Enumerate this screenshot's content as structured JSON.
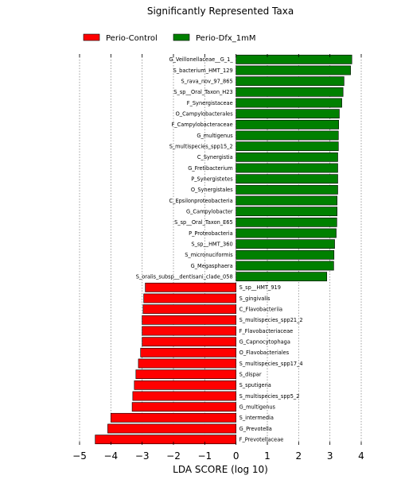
{
  "chart_data": {
    "type": "bar",
    "orientation": "horizontal",
    "title": "Significantly Represented Taxa",
    "xlabel": "LDA SCORE (log 10)",
    "xlim": [
      -5,
      4
    ],
    "xticks": [
      "−5",
      "−4",
      "−3",
      "−2",
      "−1",
      "0",
      "1",
      "2",
      "3",
      "4"
    ],
    "grid": "vertical dotted",
    "legend_position": "top",
    "series": [
      {
        "name": "Perio-Control",
        "color": "#ff0000"
      },
      {
        "name": "Perio-Dfx_1mM",
        "color": "#008000"
      }
    ],
    "bars": [
      {
        "label": "G_Veillonellaceae__G_1_",
        "value": 3.7,
        "series": 1
      },
      {
        "label": "S_bacterium_HMT_129",
        "value": 3.66,
        "series": 1
      },
      {
        "label": "S_rava_nov_97_865",
        "value": 3.45,
        "series": 1
      },
      {
        "label": "S_sp__Oral_Taxon_H23",
        "value": 3.42,
        "series": 1
      },
      {
        "label": "F_Synergistaceae",
        "value": 3.38,
        "series": 1
      },
      {
        "label": "O_Campylobacterales",
        "value": 3.3,
        "series": 1
      },
      {
        "label": "F_Campylobacteraceae",
        "value": 3.28,
        "series": 1
      },
      {
        "label": "G_multigenus",
        "value": 3.27,
        "series": 1
      },
      {
        "label": "S_multispecies_spp15_2",
        "value": 3.27,
        "series": 1
      },
      {
        "label": "C_Synergistia",
        "value": 3.25,
        "series": 1
      },
      {
        "label": "G_Fretibacterium",
        "value": 3.25,
        "series": 1
      },
      {
        "label": "P_Synergistetes",
        "value": 3.25,
        "series": 1
      },
      {
        "label": "O_Synergistales",
        "value": 3.25,
        "series": 1
      },
      {
        "label": "C_Epsilonproteobacteria",
        "value": 3.23,
        "series": 1
      },
      {
        "label": "G_Campylobacter",
        "value": 3.23,
        "series": 1
      },
      {
        "label": "S_sp__Oral_Taxon_E65",
        "value": 3.22,
        "series": 1
      },
      {
        "label": "P_Proteobacteria",
        "value": 3.2,
        "series": 1
      },
      {
        "label": "S_sp__HMT_360",
        "value": 3.15,
        "series": 1
      },
      {
        "label": "S_micronuciformis",
        "value": 3.13,
        "series": 1
      },
      {
        "label": "G_Megasphaera",
        "value": 3.12,
        "series": 1
      },
      {
        "label": "S_oralis_subsp__dentisani_clade_058",
        "value": 2.9,
        "series": 1
      },
      {
        "label": "S_sp__HMT_919",
        "value": -2.9,
        "series": 0
      },
      {
        "label": "S_gingivalis",
        "value": -2.95,
        "series": 0
      },
      {
        "label": "C_Flavobacteriia",
        "value": -2.97,
        "series": 0
      },
      {
        "label": "S_multispecies_spp21_2",
        "value": -3.0,
        "series": 0
      },
      {
        "label": "F_Flavobacteriaceae",
        "value": -3.0,
        "series": 0
      },
      {
        "label": "G_Capnocytophaga",
        "value": -3.0,
        "series": 0
      },
      {
        "label": "O_Flavobacteriales",
        "value": -3.05,
        "series": 0
      },
      {
        "label": "S_multispecies_spp17_4",
        "value": -3.12,
        "series": 0
      },
      {
        "label": "S_dispar",
        "value": -3.2,
        "series": 0
      },
      {
        "label": "S_sputigena",
        "value": -3.25,
        "series": 0
      },
      {
        "label": "S_multispecies_spp5_2",
        "value": -3.3,
        "series": 0
      },
      {
        "label": "G_multigenus",
        "value": -3.32,
        "series": 0
      },
      {
        "label": "S_intermedia",
        "value": -4.0,
        "series": 0
      },
      {
        "label": "G_Prevotella",
        "value": -4.1,
        "series": 0
      },
      {
        "label": "F_Prevotellaceae",
        "value": -4.5,
        "series": 0
      }
    ]
  }
}
